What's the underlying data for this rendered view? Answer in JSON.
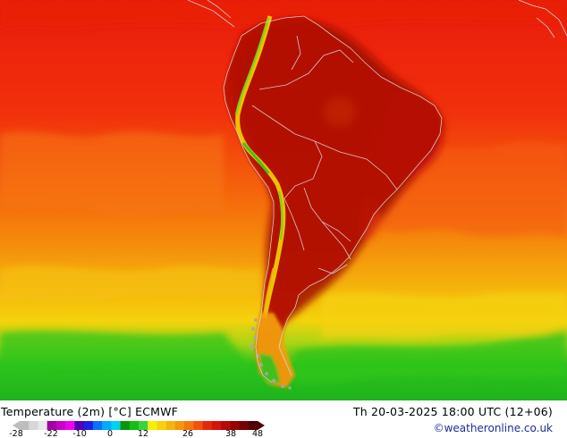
{
  "map": {
    "title": "Temperature (2m) [°C] ECMWF",
    "valid_time": "Th 20-03-2025 18:00 UTC (12+06)",
    "credit": "©weatheronline.co.uk",
    "region": "South America",
    "colors": {
      "dark_red": "#a00a00",
      "red": "#ea1c0c",
      "orange_red": "#f3460c",
      "orange": "#f5820c",
      "yellow_orange": "#f5b00c",
      "yellow": "#f5d20c",
      "light_green": "#7cd21c",
      "green": "#2ec41c",
      "land_gray": "#a8a8a8"
    }
  },
  "legend": {
    "tick_labels": [
      "-28",
      "-22",
      "-10",
      "0",
      "12",
      "26",
      "38",
      "48"
    ],
    "colors": [
      "#bdbdbd",
      "#d7d7d7",
      "#e8e8e8",
      "#a000a0",
      "#c800c8",
      "#f000f0",
      "#5000b4",
      "#1e1ee6",
      "#0a6eff",
      "#00aaff",
      "#00d2f0",
      "#0a960a",
      "#14be14",
      "#3cd23c",
      "#f5f000",
      "#f5d20c",
      "#f5b40c",
      "#f5960c",
      "#f5780c",
      "#f5500c",
      "#e6280c",
      "#d2140a",
      "#b40a0a",
      "#960000",
      "#780000",
      "#500000"
    ]
  }
}
